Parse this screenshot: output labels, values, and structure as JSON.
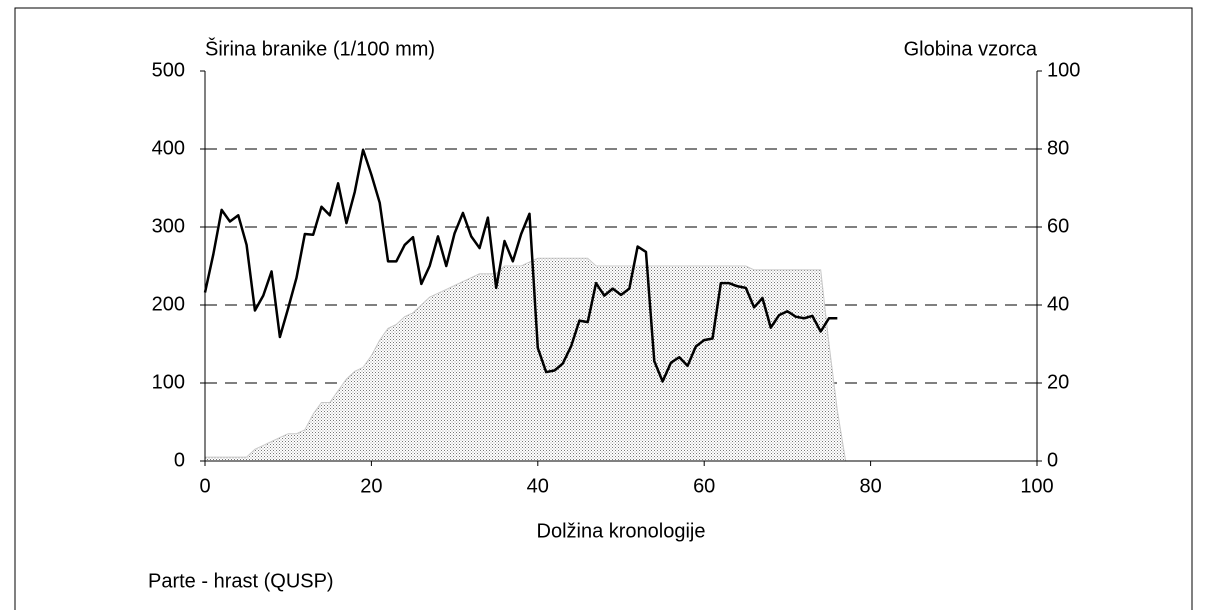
{
  "chart_data": {
    "type": "line",
    "ylabel": "Širina branike (1/100 mm)",
    "y2label": "Globina vzorca",
    "xlabel": "Dolžina kronologije",
    "note": "Parte - hrast (QUSP)",
    "xlim": [
      0,
      100
    ],
    "xticks": [
      0,
      20,
      40,
      60,
      80,
      100
    ],
    "ylim": [
      0,
      500
    ],
    "yticks": [
      0,
      100,
      200,
      300,
      400,
      500
    ],
    "y2lim": [
      0,
      100
    ],
    "y2ticks": [
      0,
      20,
      40,
      60,
      80,
      100
    ],
    "grid": true,
    "series": [
      {
        "type": "area",
        "axis": "y2",
        "color": "#c8c8c8",
        "x": [
          0,
          1,
          2,
          3,
          4,
          5,
          6,
          7,
          8,
          9,
          10,
          11,
          12,
          13,
          14,
          15,
          16,
          17,
          18,
          19,
          20,
          21,
          22,
          23,
          24,
          25,
          26,
          27,
          28,
          29,
          30,
          31,
          32,
          33,
          34,
          35,
          36,
          37,
          38,
          39,
          40,
          41,
          42,
          43,
          44,
          45,
          46,
          47,
          48,
          49,
          50,
          51,
          52,
          53,
          54,
          55,
          56,
          57,
          58,
          59,
          60,
          61,
          62,
          63,
          64,
          65,
          66,
          67,
          68,
          69,
          70,
          71,
          72,
          73,
          74,
          75,
          76,
          77
        ],
        "values": [
          1,
          1,
          1,
          1,
          1,
          1,
          3,
          4,
          5,
          6,
          7,
          7,
          8,
          12,
          15,
          15,
          18,
          21,
          23,
          24,
          27,
          31,
          34,
          35,
          37,
          38,
          40,
          42,
          43,
          44,
          45,
          46,
          47,
          48,
          48,
          48,
          50,
          50,
          50,
          51,
          52,
          52,
          52,
          52,
          52,
          52,
          52,
          50,
          50,
          50,
          50,
          50,
          50,
          50,
          50,
          50,
          50,
          50,
          50,
          50,
          50,
          50,
          50,
          50,
          50,
          50,
          49,
          49,
          49,
          49,
          49,
          49,
          49,
          49,
          49,
          30,
          13,
          0
        ]
      },
      {
        "type": "line",
        "color": "#000000",
        "x": [
          0,
          1,
          2,
          3,
          4,
          5,
          6,
          7,
          8,
          9,
          10,
          11,
          12,
          13,
          14,
          15,
          16,
          17,
          18,
          19,
          20,
          21,
          22,
          23,
          24,
          25,
          26,
          27,
          28,
          29,
          30,
          31,
          32,
          33,
          34,
          35,
          36,
          37,
          38,
          39,
          40,
          41,
          42,
          43,
          44,
          45,
          46,
          47,
          48,
          49,
          50,
          51,
          52,
          53,
          54,
          55,
          56,
          57,
          58,
          59,
          60,
          61,
          62,
          63,
          64,
          65,
          66,
          67,
          68,
          69,
          70,
          71,
          72,
          73,
          74,
          75,
          76
        ],
        "values": [
          216,
          265,
          322,
          307,
          315,
          277,
          193,
          212,
          243,
          159,
          196,
          235,
          291,
          290,
          326,
          315,
          356,
          305,
          345,
          399,
          367,
          331,
          256,
          256,
          277,
          287,
          227,
          250,
          288,
          250,
          292,
          318,
          288,
          273,
          312,
          222,
          282,
          256,
          291,
          317,
          145,
          114,
          116,
          125,
          147,
          180,
          178,
          228,
          212,
          221,
          213,
          221,
          275,
          268,
          128,
          102,
          126,
          133,
          122,
          147,
          155,
          157,
          228,
          228,
          224,
          222,
          197,
          209,
          171,
          187,
          192,
          185,
          183,
          186,
          166,
          183,
          183
        ]
      }
    ]
  }
}
